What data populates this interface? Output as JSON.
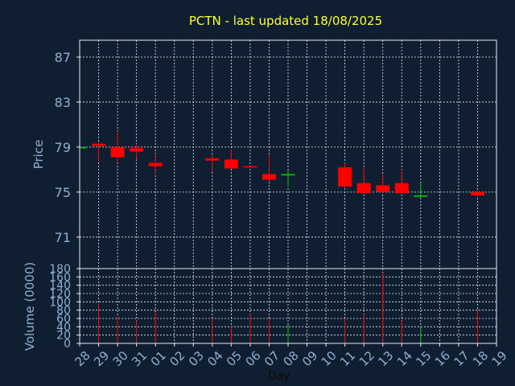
{
  "chart_data": {
    "type": "candlestick",
    "title": "PCTN - last updated 18/08/2025",
    "xlabel": "Day",
    "colors": {
      "background": "#0f1e30",
      "axis": "#e8eef6",
      "grid": "#e8eef6",
      "label": "#8fb0d2",
      "title": "#ffff33",
      "down": "#ff0000",
      "up": "#00cc00"
    },
    "x_ticks": [
      "28",
      "29",
      "30",
      "31",
      "01",
      "02",
      "03",
      "04",
      "05",
      "06",
      "07",
      "08",
      "09",
      "10",
      "11",
      "12",
      "13",
      "14",
      "15",
      "16",
      "17",
      "18",
      "19"
    ],
    "price_panel": {
      "ylabel": "Price",
      "ylim": [
        68.2,
        88.5
      ],
      "yticks": [
        71,
        75,
        79,
        83,
        87
      ],
      "candles": [
        {
          "day": "28",
          "open": 79.0,
          "high": 79.0,
          "low": 79.0,
          "close": 79.0,
          "dir": "up"
        },
        {
          "day": "29",
          "open": 79.3,
          "high": 79.5,
          "low": 77.7,
          "close": 79.1,
          "dir": "down"
        },
        {
          "day": "30",
          "open": 79.0,
          "high": 80.4,
          "low": 77.6,
          "close": 78.1,
          "dir": "down"
        },
        {
          "day": "31",
          "open": 78.9,
          "high": 79.3,
          "low": 77.9,
          "close": 78.6,
          "dir": "down"
        },
        {
          "day": "01",
          "open": 77.6,
          "high": 78.4,
          "low": 76.6,
          "close": 77.3,
          "dir": "down"
        },
        {
          "day": "04",
          "open": 78.0,
          "high": 78.4,
          "low": 76.8,
          "close": 77.8,
          "dir": "down"
        },
        {
          "day": "05",
          "open": 77.9,
          "high": 78.8,
          "low": 77.1,
          "close": 77.1,
          "dir": "down"
        },
        {
          "day": "06",
          "open": 77.3,
          "high": 77.3,
          "low": 77.2,
          "close": 77.2,
          "dir": "down"
        },
        {
          "day": "07",
          "open": 76.6,
          "high": 78.3,
          "low": 75.9,
          "close": 76.1,
          "dir": "down"
        },
        {
          "day": "08",
          "open": 76.5,
          "high": 76.9,
          "low": 75.5,
          "close": 76.6,
          "dir": "up"
        },
        {
          "day": "11",
          "open": 77.2,
          "high": 77.6,
          "low": 75.3,
          "close": 75.5,
          "dir": "down"
        },
        {
          "day": "12",
          "open": 75.8,
          "high": 77.1,
          "low": 74.9,
          "close": 74.9,
          "dir": "down"
        },
        {
          "day": "13",
          "open": 75.6,
          "high": 76.6,
          "low": 74.9,
          "close": 75.0,
          "dir": "down"
        },
        {
          "day": "14",
          "open": 75.8,
          "high": 77.0,
          "low": 74.9,
          "close": 74.9,
          "dir": "down"
        },
        {
          "day": "15",
          "open": 74.6,
          "high": 75.8,
          "low": 74.5,
          "close": 74.7,
          "dir": "up"
        },
        {
          "day": "18",
          "open": 75.0,
          "high": 75.1,
          "low": 74.6,
          "close": 74.7,
          "dir": "down"
        }
      ]
    },
    "volume_panel": {
      "ylabel": "Volume (0000)",
      "ylim": [
        0,
        180
      ],
      "yticks": [
        0,
        20,
        40,
        60,
        80,
        100,
        120,
        140,
        160,
        180
      ],
      "bars": [
        {
          "day": "29",
          "value": 95,
          "dir": "down"
        },
        {
          "day": "30",
          "value": 65,
          "dir": "down"
        },
        {
          "day": "31",
          "value": 55,
          "dir": "down"
        },
        {
          "day": "01",
          "value": 75,
          "dir": "down"
        },
        {
          "day": "04",
          "value": 60,
          "dir": "down"
        },
        {
          "day": "05",
          "value": 40,
          "dir": "down"
        },
        {
          "day": "06",
          "value": 70,
          "dir": "down"
        },
        {
          "day": "07",
          "value": 60,
          "dir": "down"
        },
        {
          "day": "08",
          "value": 45,
          "dir": "up"
        },
        {
          "day": "11",
          "value": 60,
          "dir": "down"
        },
        {
          "day": "12",
          "value": 70,
          "dir": "down"
        },
        {
          "day": "13",
          "value": 170,
          "dir": "down"
        },
        {
          "day": "14",
          "value": 55,
          "dir": "down"
        },
        {
          "day": "15",
          "value": 40,
          "dir": "up"
        },
        {
          "day": "18",
          "value": 78,
          "dir": "down"
        }
      ]
    }
  }
}
